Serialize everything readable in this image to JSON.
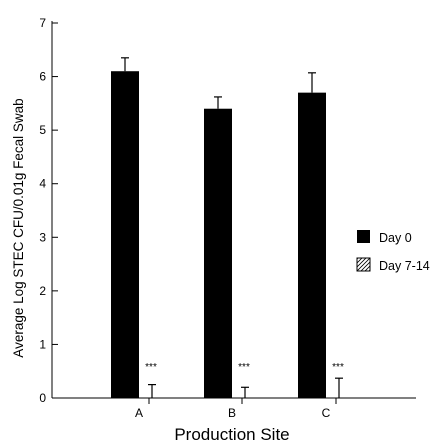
{
  "chart_data": {
    "type": "bar",
    "title": "",
    "xlabel": "Production Site",
    "ylabel": "Average Log STEC CFU/0.01g Fecal Swab",
    "categories": [
      "A",
      "B",
      "C"
    ],
    "ylim": [
      0,
      7
    ],
    "yticks": [
      "0",
      "1",
      "2",
      "3",
      "4",
      "5",
      "6",
      "7"
    ],
    "grid": false,
    "legend_position": "right",
    "series": [
      {
        "name": "Day 0",
        "fill": "solid-black",
        "values": [
          6.1,
          5.4,
          5.7
        ],
        "error": [
          0.25,
          0.22,
          0.37
        ]
      },
      {
        "name": "Day 7-14",
        "fill": "hatched",
        "values": [
          0.0,
          0.0,
          0.0
        ],
        "error": [
          0.25,
          0.2,
          0.37
        ]
      }
    ],
    "annotations": [
      "***",
      "***",
      "***"
    ]
  }
}
